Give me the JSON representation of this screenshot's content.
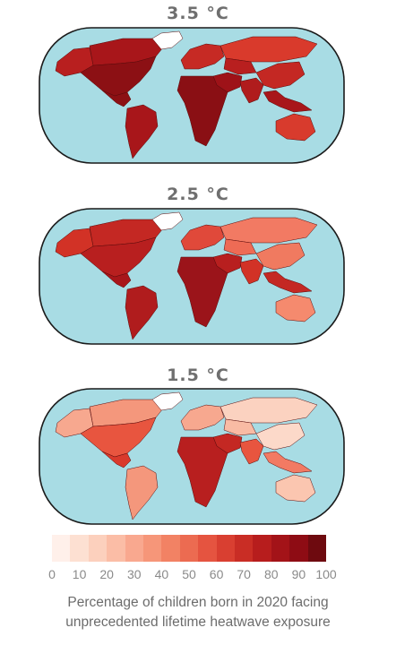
{
  "panels": [
    {
      "title": "3.5 °C",
      "regions": {
        "north_america": "#8c1014",
        "greenland": "#ffffff",
        "central_america": "#8c1014",
        "south_america": "#a8161a",
        "europe": "#c62a24",
        "russia": "#d93a2c",
        "middle_east": "#9e1218",
        "africa": "#8a0f14",
        "central_asia": "#b81f1f",
        "south_asia": "#b01c1d",
        "east_asia": "#c42823",
        "southeast_asia": "#a8161a",
        "australia": "#d83b2d",
        "alaska": "#b81f1f",
        "canada_north": "#a8161a"
      }
    },
    {
      "title": "2.5 °C",
      "regions": {
        "north_america": "#b81f1f",
        "greenland": "#ffffff",
        "central_america": "#a8161a",
        "south_america": "#b01c1d",
        "europe": "#e0493a",
        "russia": "#f27a63",
        "middle_east": "#b81f1f",
        "africa": "#9b141a",
        "central_asia": "#ee6b55",
        "south_asia": "#d23226",
        "east_asia": "#f07a60",
        "southeast_asia": "#c42823",
        "australia": "#f58a6e",
        "alaska": "#d23226",
        "canada_north": "#c42823"
      }
    },
    {
      "title": "1.5 °C",
      "regions": {
        "north_america": "#e8553f",
        "greenland": "#ffffff",
        "central_america": "#d93a2c",
        "south_america": "#f4977c",
        "europe": "#f7a88f",
        "russia": "#fbd2c0",
        "middle_east": "#c42823",
        "africa": "#b81f1f",
        "central_asia": "#f9bba4",
        "south_asia": "#e8553f",
        "east_asia": "#fcd9c9",
        "southeast_asia": "#f27a63",
        "australia": "#fbc6b0",
        "alaska": "#f7a88f",
        "canada_north": "#f4977c"
      }
    }
  ],
  "legend": {
    "colors": [
      "#fff0ea",
      "#fde0d2",
      "#fcd0bd",
      "#fbbda6",
      "#f9a88f",
      "#f69679",
      "#f28264",
      "#ec6b51",
      "#e55440",
      "#d93f31",
      "#c92d25",
      "#b71d1d",
      "#a31318",
      "#8e0c14",
      "#6e0a0f"
    ],
    "ticks": [
      "0",
      "10",
      "20",
      "30",
      "40",
      "50",
      "60",
      "70",
      "80",
      "90",
      "100"
    ]
  },
  "caption": {
    "line1": "Percentage of children born in 2020 facing",
    "line2": "unprecedented lifetime heatwave exposure"
  },
  "colors": {
    "ocean": "#a8dce4",
    "outline": "#1a1a1a"
  }
}
